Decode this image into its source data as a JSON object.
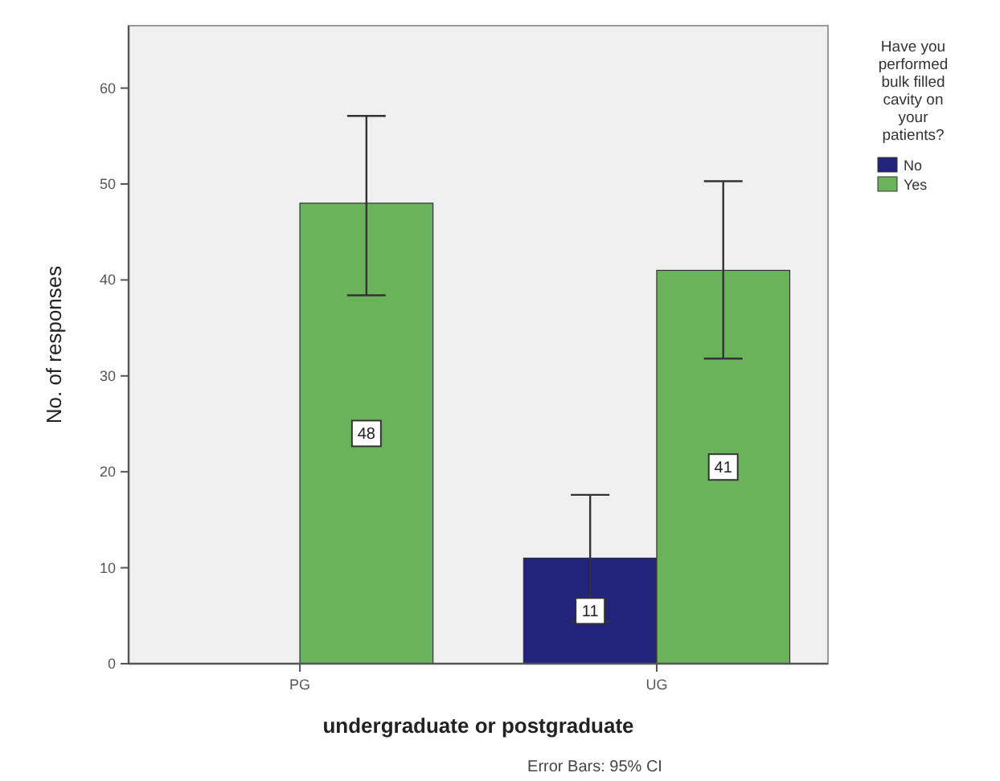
{
  "chart_data": {
    "type": "bar",
    "xlabel": "undergraduate or postgraduate",
    "ylabel": "No. of responses",
    "legend_title": "Have you performed bulk filled cavity on your patients?",
    "categories": [
      "PG",
      "UG"
    ],
    "series": [
      {
        "name": "No",
        "color": "#22237a",
        "values": [
          null,
          11
        ],
        "errors": [
          null,
          [
            4.4,
            17.6
          ]
        ]
      },
      {
        "name": "Yes",
        "color": "#6bb35a",
        "values": [
          48,
          41
        ],
        "errors": [
          [
            38.4,
            57.1
          ],
          [
            31.8,
            50.3
          ]
        ]
      }
    ],
    "ylim": [
      0,
      66.5
    ],
    "yticks": [
      0,
      10,
      20,
      30,
      40,
      50,
      60
    ],
    "data_labels": true,
    "legend": "right",
    "grid": false,
    "annotations": [
      "Error Bars: 95% CI"
    ]
  }
}
